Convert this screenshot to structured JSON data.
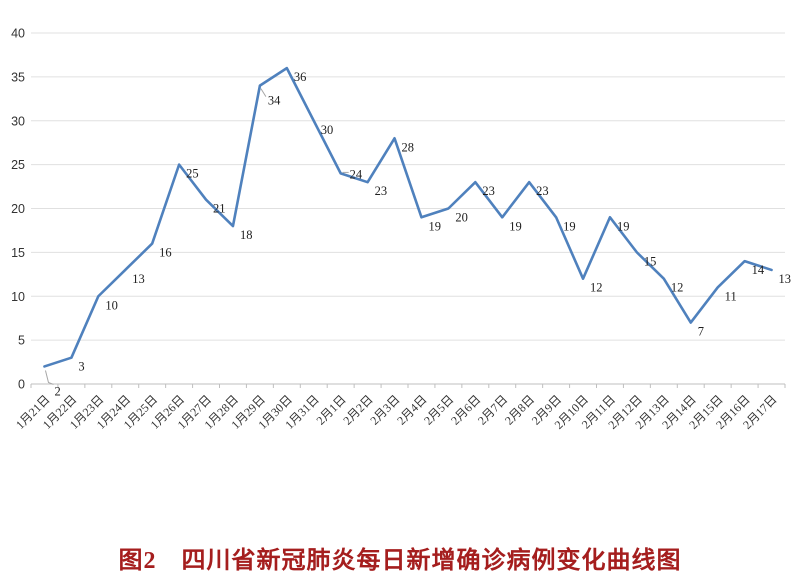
{
  "page": {
    "background": "#ffffff"
  },
  "chart_data": {
    "type": "line",
    "title": "图2　四川省新冠肺炎每日新增确诊病例变化曲线图",
    "xlabel": "",
    "ylabel": "",
    "categories": [
      "1月21日",
      "1月22日",
      "1月23日",
      "1月24日",
      "1月25日",
      "1月26日",
      "1月27日",
      "1月28日",
      "1月29日",
      "1月30日",
      "1月31日",
      "2月1日",
      "2月2日",
      "2月3日",
      "2月4日",
      "2月5日",
      "2月6日",
      "2月7日",
      "2月8日",
      "2月9日",
      "2月10日",
      "2月11日",
      "2月12日",
      "2月13日",
      "2月14日",
      "2月15日",
      "2月16日",
      "2月17日"
    ],
    "values": [
      2,
      3,
      10,
      13,
      16,
      25,
      21,
      18,
      34,
      36,
      30,
      24,
      23,
      28,
      19,
      20,
      23,
      19,
      23,
      19,
      12,
      19,
      15,
      12,
      7,
      11,
      14,
      13
    ],
    "ylim": [
      0,
      40
    ],
    "yticks": [
      0,
      5,
      10,
      15,
      20,
      25,
      30,
      35,
      40
    ],
    "grid": "horizontal",
    "legend": "none",
    "data_labels": "on",
    "colors": {
      "line": "#4f81bd",
      "title": "#a51e1e",
      "data_label": "#1f1f1f",
      "axis_label": "#333333",
      "gridline": "#e0e0e0",
      "axis_line": "#bfbfbf",
      "leader": "#a6a6a6"
    },
    "layout": {
      "x_label_rotation": -45,
      "label_overrides": {
        "0": [
          10,
          29
        ],
        "8": [
          8,
          19
        ],
        "11": [
          9,
          5
        ]
      },
      "leaders": {
        "0": [
          [
            1,
            4
          ],
          [
            4,
            16
          ],
          [
            9,
            18
          ]
        ],
        "8": [
          [
            1,
            3
          ],
          [
            6,
            11
          ]
        ],
        "11": [
          [
            2,
            -1
          ],
          [
            8,
            -1
          ]
        ]
      }
    }
  }
}
